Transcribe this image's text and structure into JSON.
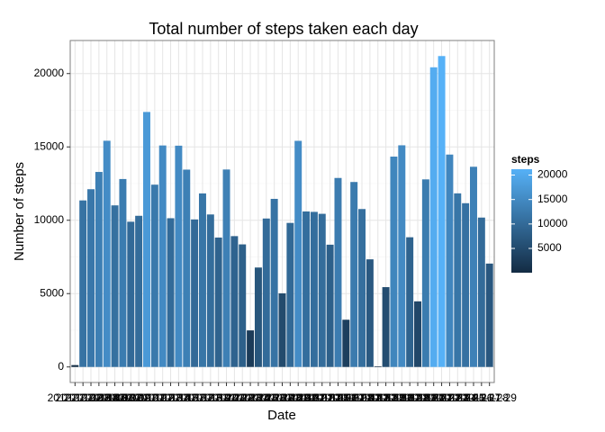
{
  "chart_data": {
    "type": "bar",
    "title": "Total number of steps taken each day",
    "xlabel": "Date",
    "ylabel": "Number of steps",
    "categories": [
      "2012-10-02",
      "2012-10-03",
      "2012-10-04",
      "2012-10-05",
      "2012-10-06",
      "2012-10-07",
      "2012-10-09",
      "2012-10-10",
      "2012-10-11",
      "2012-10-12",
      "2012-10-13",
      "2012-10-14",
      "2012-10-15",
      "2012-10-16",
      "2012-10-17",
      "2012-10-18",
      "2012-10-19",
      "2012-10-20",
      "2012-10-21",
      "2012-10-22",
      "2012-10-23",
      "2012-10-24",
      "2012-10-25",
      "2012-10-26",
      "2012-10-27",
      "2012-10-28",
      "2012-10-29",
      "2012-10-30",
      "2012-10-31",
      "2012-11-02",
      "2012-11-03",
      "2012-11-05",
      "2012-11-06",
      "2012-11-07",
      "2012-11-08",
      "2012-11-11",
      "2012-11-12",
      "2012-11-13",
      "2012-11-15",
      "2012-11-16",
      "2012-11-17",
      "2012-11-18",
      "2012-11-19",
      "2012-11-20",
      "2012-11-21",
      "2012-11-22",
      "2012-11-23",
      "2012-11-24",
      "2012-11-25",
      "2012-11-26",
      "2012-11-27",
      "2012-11-28",
      "2012-11-29"
    ],
    "values": [
      126,
      11352,
      12116,
      13294,
      15420,
      11015,
      12811,
      9900,
      10304,
      17382,
      12426,
      15098,
      10139,
      15084,
      13452,
      10056,
      11829,
      10395,
      8821,
      13460,
      8918,
      8355,
      2492,
      6778,
      10119,
      11458,
      5018,
      9819,
      15414,
      10600,
      10571,
      10439,
      8334,
      12883,
      3219,
      12608,
      10765,
      7336,
      41,
      5441,
      14339,
      15110,
      8841,
      4472,
      12787,
      20427,
      21194,
      14478,
      11834,
      11162,
      13646,
      10183,
      7047
    ],
    "ylim": [
      -1060,
      22254
    ],
    "yticks": [
      0,
      5000,
      10000,
      15000,
      20000
    ],
    "grid": true,
    "legend_title": "steps",
    "legend_ticks": [
      5000,
      10000,
      15000,
      20000
    ],
    "color_low": "#132B43",
    "color_high": "#56B1F7"
  }
}
